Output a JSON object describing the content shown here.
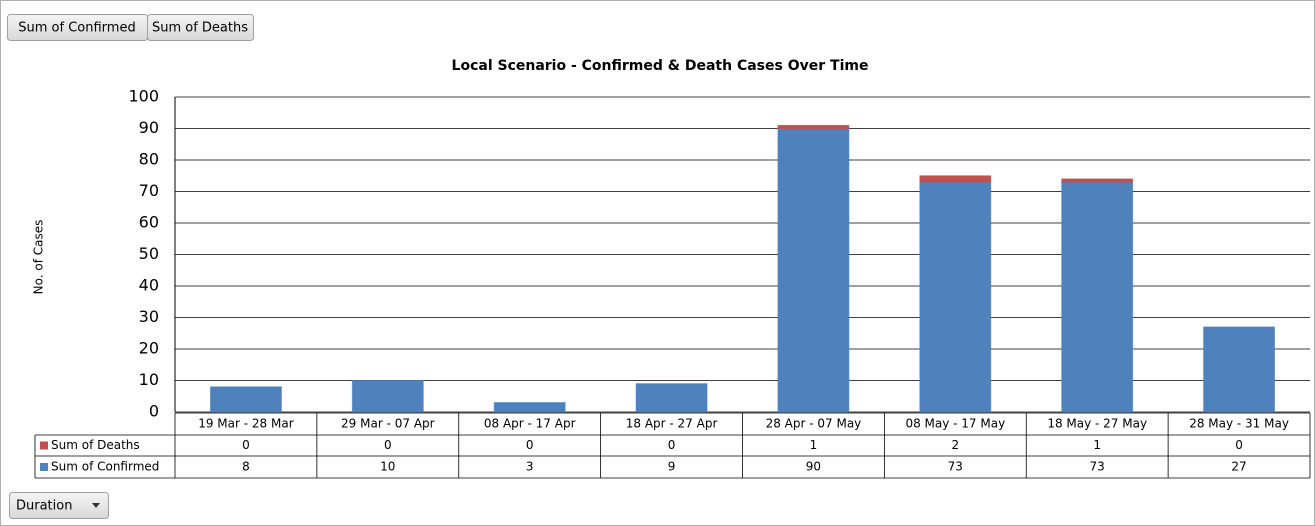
{
  "chart_data": {
    "type": "stacked_bar",
    "title": "Local Scenario - Confirmed & Death Cases Over Time",
    "y_label": "No. of Cases",
    "axis_field": "Duration",
    "categories": [
      "19 Mar - 28 Mar",
      "29 Mar - 07 Apr",
      "08 Apr - 17 Apr",
      "18 Apr - 27 Apr",
      "28 Apr - 07 May",
      "08 May - 17 May",
      "18 May - 27 May",
      "28 May - 31 May"
    ],
    "series": [
      {
        "name": "Sum of Confirmed",
        "color": "#4f81bd",
        "values": [
          8,
          10,
          3,
          9,
          90,
          73,
          73,
          27
        ]
      },
      {
        "name": "Sum of Deaths",
        "color": "#c0504d",
        "values": [
          0,
          0,
          0,
          0,
          1,
          2,
          1,
          0
        ]
      }
    ],
    "ylim": [
      0,
      100
    ],
    "yticks": [
      0,
      10,
      20,
      30,
      40,
      50,
      60,
      70,
      80,
      90,
      100
    ],
    "grid": true
  }
}
